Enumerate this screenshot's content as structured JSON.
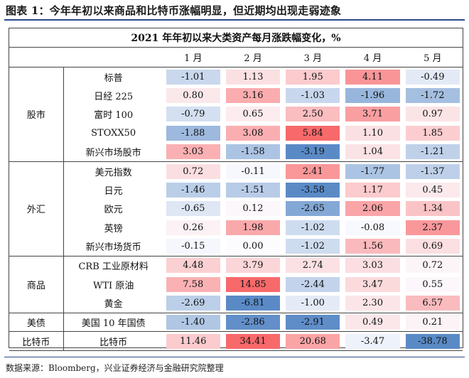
{
  "figure_title": "图表 1：今年年初以来商品和比特币涨幅明显，但近期均出现走弱迹象",
  "table_caption": "2021 年年初以来大类资产每月涨跌幅变化，%",
  "months": [
    "1 月",
    "2 月",
    "3 月",
    "4 月",
    "5 月"
  ],
  "groups": [
    {
      "name": "股市",
      "rows": [
        {
          "item": "标普",
          "values": [
            "-1.01",
            "1.13",
            "1.95",
            "4.11",
            "-0.49"
          ]
        },
        {
          "item": "日经 225",
          "values": [
            "0.80",
            "3.16",
            "-1.03",
            "-1.96",
            "-1.72"
          ]
        },
        {
          "item": "富时 100",
          "values": [
            "-0.79",
            "0.65",
            "2.50",
            "3.71",
            "0.97"
          ]
        },
        {
          "item": "STOXX50",
          "values": [
            "-1.88",
            "3.08",
            "5.84",
            "1.10",
            "1.85"
          ]
        },
        {
          "item": "新兴市场股市",
          "values": [
            "3.03",
            "-1.58",
            "-3.19",
            "1.04",
            "-1.21"
          ]
        }
      ]
    },
    {
      "name": "外汇",
      "rows": [
        {
          "item": "美元指数",
          "values": [
            "0.72",
            "-0.11",
            "2.41",
            "-1.77",
            "-1.37"
          ]
        },
        {
          "item": "日元",
          "values": [
            "-1.46",
            "-1.51",
            "-3.58",
            "1.17",
            "0.45"
          ]
        },
        {
          "item": "欧元",
          "values": [
            "-0.65",
            "0.12",
            "-2.65",
            "2.06",
            "1.34"
          ]
        },
        {
          "item": "英镑",
          "values": [
            "0.26",
            "1.98",
            "-1.02",
            "-0.08",
            "2.37"
          ]
        },
        {
          "item": "新兴市场货币",
          "values": [
            "-0.15",
            "0.00",
            "-1.02",
            "1.56",
            "0.69"
          ]
        }
      ]
    },
    {
      "name": "商品",
      "rows": [
        {
          "item": "CRB 工业原材料",
          "values": [
            "4.48",
            "3.79",
            "2.74",
            "3.03",
            "0.72"
          ]
        },
        {
          "item": "WTI 原油",
          "values": [
            "7.58",
            "14.85",
            "-2.44",
            "3.47",
            "0.55"
          ]
        },
        {
          "item": "黄金",
          "values": [
            "-2.69",
            "-6.81",
            "-1.00",
            "2.30",
            "6.57"
          ]
        }
      ]
    },
    {
      "name": "美债",
      "rows": [
        {
          "item": "美国 10 年国债",
          "values": [
            "-1.40",
            "-2.86",
            "-2.91",
            "0.49",
            "0.21"
          ]
        }
      ]
    },
    {
      "name": "比特币",
      "rows": [
        {
          "item": "比特币",
          "values": [
            "11.46",
            "34.41",
            "20.68",
            "-3.47",
            "-38.78"
          ]
        }
      ]
    }
  ],
  "source": "数据来源：Bloomberg，兴业证券经济与金融研究院整理",
  "colors": {
    "positive_strong": "#f8696b",
    "negative_strong": "#5a8ac6",
    "neutral": "#fcfcff",
    "title_rule": "#2a4a8a"
  }
}
